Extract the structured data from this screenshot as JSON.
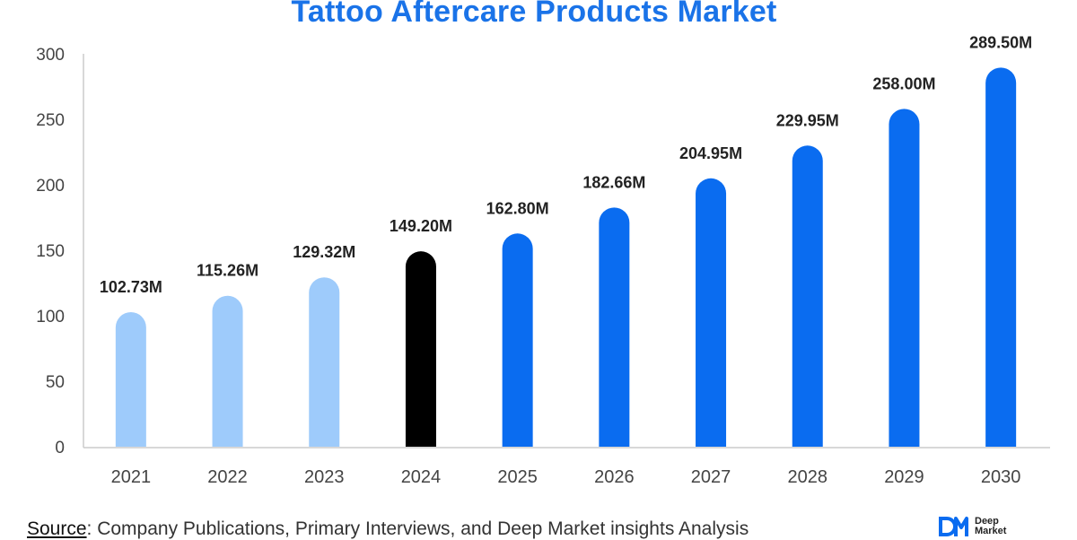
{
  "chart_data": {
    "type": "bar",
    "title": "Tattoo Aftercare Products Market",
    "categories": [
      "2021",
      "2022",
      "2023",
      "2024",
      "2025",
      "2026",
      "2027",
      "2028",
      "2029",
      "2030"
    ],
    "values": [
      102.73,
      115.26,
      129.32,
      149.2,
      162.8,
      182.66,
      204.95,
      229.95,
      258.0,
      289.5
    ],
    "data_labels": [
      "102.73M",
      "115.26M",
      "129.32M",
      "149.20M",
      "162.80M",
      "182.66M",
      "204.95M",
      "229.95M",
      "258.00M",
      "289.50M"
    ],
    "bar_colors": [
      "#9ecbfb",
      "#9ecbfb",
      "#9ecbfb",
      "#000000",
      "#0a6cf0",
      "#0a6cf0",
      "#0a6cf0",
      "#0a6cf0",
      "#0a6cf0",
      "#0a6cf0"
    ],
    "yticks": [
      0,
      50,
      100,
      150,
      200,
      250,
      300
    ],
    "ylim": [
      0,
      300
    ],
    "xlabel": "",
    "ylabel": "",
    "grid": false,
    "legend": "none"
  },
  "source": {
    "label": "Source",
    "text": ": Company Publications, Primary Interviews, and Deep Market insights Analysis"
  },
  "logo": {
    "line1": "Deep",
    "line2": "Market",
    "mark_color": "#0a6cf0"
  },
  "colors": {
    "title": "#1a73e8",
    "axis": "#cccccc",
    "tick_text": "#444444",
    "label_text": "#222222"
  }
}
